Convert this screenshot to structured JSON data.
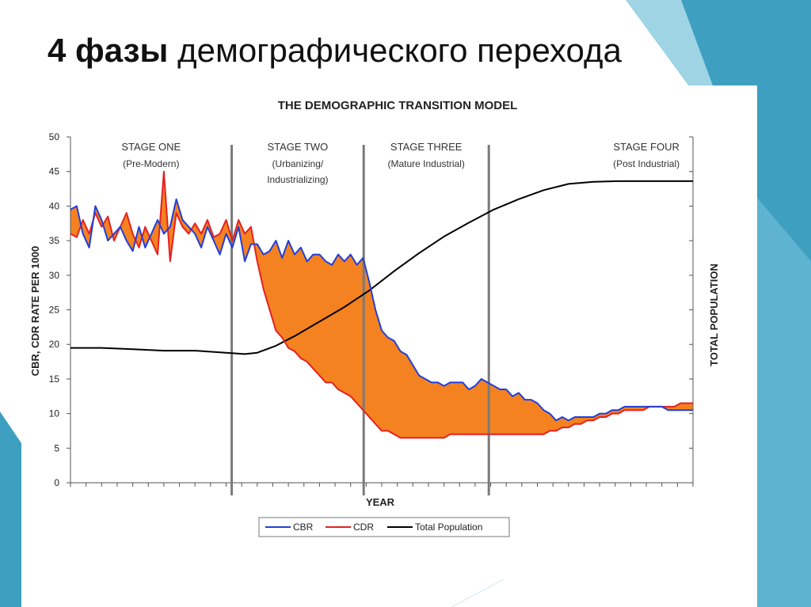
{
  "slide": {
    "title_bold": "4 фазы",
    "title_rest": " демографического перехода",
    "colors": {
      "accent_teal": "#3e9fc1",
      "accent_light": "#9fd4e4"
    }
  },
  "chart_data": {
    "type": "line",
    "title": "THE DEMOGRAPHIC TRANSITION MODEL",
    "xlabel": "YEAR",
    "ylabel": "CBR, CDR RATE PER 1000",
    "ylabel_right": "TOTAL POPULATION",
    "ylim": [
      0,
      50
    ],
    "yticks": [
      0,
      5,
      10,
      15,
      20,
      25,
      30,
      35,
      40,
      45,
      50
    ],
    "x_range": [
      0,
      100
    ],
    "grid": false,
    "legend_position": "bottom",
    "stages": [
      {
        "name": "STAGE ONE",
        "sub": [
          "(Pre-Modern)"
        ],
        "start": 0,
        "end": 25.9
      },
      {
        "name": "STAGE TWO",
        "sub": [
          "(Urbanizing/",
          "Industrializing)"
        ],
        "start": 25.9,
        "end": 47.1
      },
      {
        "name": "STAGE THREE",
        "sub": [
          "(Mature Industrial)"
        ],
        "start": 47.1,
        "end": 67.2
      },
      {
        "name": "STAGE FOUR",
        "sub": [
          "(Post Industrial)"
        ],
        "start": 67.2,
        "end": 100
      }
    ],
    "fill_color": "#f58220",
    "series": [
      {
        "name": "CBR",
        "color": "#1f3fdc",
        "x": [
          0,
          1,
          2,
          3,
          4,
          5,
          6,
          7,
          8,
          9,
          10,
          11,
          12,
          13,
          14,
          15,
          16,
          17,
          18,
          19,
          20,
          21,
          22,
          23,
          24,
          25,
          26,
          27,
          28,
          29,
          30,
          31,
          32,
          33,
          34,
          35,
          36,
          37,
          38,
          39,
          40,
          41,
          42,
          43,
          44,
          45,
          46,
          47,
          48,
          49,
          50,
          51,
          52,
          53,
          54,
          55,
          56,
          57,
          58,
          59,
          60,
          61,
          62,
          63,
          64,
          65,
          66,
          67,
          68,
          69,
          70,
          71,
          72,
          73,
          74,
          75,
          76,
          77,
          78,
          79,
          80,
          81,
          82,
          83,
          84,
          85,
          86,
          87,
          88,
          89,
          90,
          91,
          92,
          93,
          94,
          95,
          96,
          97,
          98,
          99,
          100
        ],
        "y": [
          39.5,
          40,
          36,
          34,
          40,
          38,
          35,
          36,
          37,
          35,
          33.5,
          37,
          34,
          36,
          38,
          36,
          37,
          41,
          38,
          37,
          36,
          34,
          37,
          35,
          33,
          36,
          34,
          37,
          32,
          34.5,
          34.5,
          33,
          33.5,
          35,
          32.5,
          35,
          33,
          34,
          32,
          33,
          33,
          32,
          31.5,
          33,
          32,
          33,
          31.5,
          32.5,
          29,
          25,
          22,
          21,
          20.5,
          19,
          18.5,
          17,
          15.5,
          15,
          14.5,
          14.5,
          14,
          14.5,
          14.5,
          14.5,
          13.5,
          14,
          15,
          14.5,
          14,
          13.5,
          13.5,
          12.5,
          13,
          12,
          12,
          11.5,
          10.5,
          10,
          9,
          9.5,
          9,
          9.5,
          9.5,
          9.5,
          9.5,
          10,
          10,
          10.5,
          10.5,
          11,
          11,
          11,
          11,
          11,
          11,
          11,
          10.5,
          10.5,
          10.5,
          10.5,
          10.5
        ]
      },
      {
        "name": "CDR",
        "color": "#e32222",
        "x": [
          0,
          1,
          2,
          3,
          4,
          5,
          6,
          7,
          8,
          9,
          10,
          11,
          12,
          13,
          14,
          15,
          16,
          17,
          18,
          19,
          20,
          21,
          22,
          23,
          24,
          25,
          26,
          27,
          28,
          29,
          30,
          31,
          32,
          33,
          34,
          35,
          36,
          37,
          38,
          39,
          40,
          41,
          42,
          43,
          44,
          45,
          46,
          47,
          48,
          49,
          50,
          51,
          52,
          53,
          54,
          55,
          56,
          57,
          58,
          59,
          60,
          61,
          62,
          63,
          64,
          65,
          66,
          67,
          68,
          69,
          70,
          71,
          72,
          73,
          74,
          75,
          76,
          77,
          78,
          79,
          80,
          81,
          82,
          83,
          84,
          85,
          86,
          87,
          88,
          89,
          90,
          91,
          92,
          93,
          94,
          95,
          96,
          97,
          98,
          99,
          100
        ],
        "y": [
          36,
          35.5,
          38,
          36,
          39,
          37,
          38.5,
          35,
          37,
          39,
          36,
          34,
          37,
          35,
          33,
          45,
          32,
          39,
          37,
          36,
          37.5,
          36,
          38,
          35.5,
          36,
          38,
          35,
          38,
          36,
          37,
          32,
          28,
          25,
          22,
          21,
          19.5,
          19,
          18,
          17.5,
          16.5,
          15.5,
          14.5,
          14.5,
          13.5,
          13,
          12.5,
          11.5,
          10.5,
          9.5,
          8.5,
          7.5,
          7.5,
          7,
          6.5,
          6.5,
          6.5,
          6.5,
          6.5,
          6.5,
          6.5,
          6.5,
          7,
          7,
          7,
          7,
          7,
          7,
          7,
          7,
          7,
          7,
          7,
          7,
          7,
          7,
          7,
          7,
          7.5,
          7.5,
          8,
          8,
          8.5,
          8.5,
          9,
          9,
          9.5,
          9.5,
          10,
          10,
          10.5,
          10.5,
          10.5,
          10.5,
          11,
          11,
          11,
          11,
          11,
          11.5,
          11.5,
          11.5
        ]
      },
      {
        "name": "Total Population",
        "color": "#000000",
        "x": [
          0,
          5,
          10,
          15,
          20,
          25,
          28,
          30,
          33,
          36,
          40,
          44,
          48,
          52,
          56,
          60,
          64,
          68,
          72,
          76,
          80,
          84,
          88,
          92,
          96,
          100
        ],
        "y": [
          19.5,
          19.5,
          19.3,
          19.1,
          19.1,
          18.8,
          18.6,
          18.8,
          19.8,
          21.2,
          23.3,
          25.4,
          27.8,
          30.6,
          33.2,
          35.6,
          37.6,
          39.5,
          41.0,
          42.3,
          43.2,
          43.5,
          43.6,
          43.6,
          43.6,
          43.6
        ]
      }
    ]
  }
}
